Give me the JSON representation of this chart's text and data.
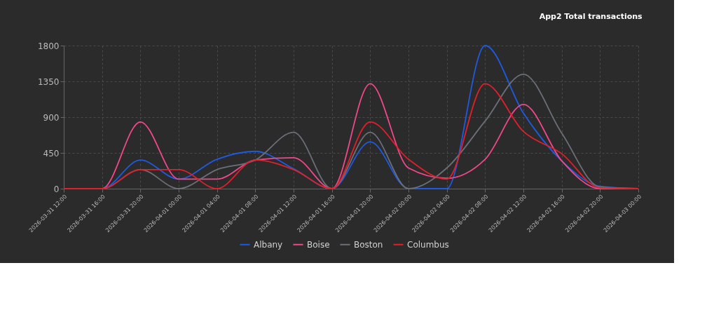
{
  "chart_data": {
    "type": "line",
    "title": "App2 Total transactions",
    "x": [
      "2026-03-31T12:00",
      "2026-03-31T16:00",
      "2026-03-31T20:00",
      "2026-04-01T00:00",
      "2026-04-01T04:00",
      "2026-04-01T08:00",
      "2026-04-01T12:00",
      "2026-04-01T16:00",
      "2026-04-01T20:00",
      "2026-04-02T00:00",
      "2026-04-02T04:00",
      "2026-04-02T08:00",
      "2026-04-02T12:00",
      "2026-04-02T16:00",
      "2026-04-02T20:00",
      "2026-04-03T00:00"
    ],
    "series": [
      {
        "name": "Albany",
        "color": "#1f5be0",
        "values": [
          0,
          0,
          360,
          120,
          370,
          470,
          250,
          0,
          590,
          0,
          0,
          1800,
          950,
          350,
          30,
          0
        ]
      },
      {
        "name": "Boise",
        "color": "#f0488a",
        "values": [
          0,
          0,
          840,
          120,
          120,
          360,
          390,
          0,
          1320,
          260,
          130,
          370,
          1060,
          350,
          0,
          0
        ]
      },
      {
        "name": "Boston",
        "color": "#6b6f78",
        "values": [
          0,
          0,
          240,
          0,
          240,
          360,
          710,
          0,
          710,
          0,
          260,
          850,
          1440,
          700,
          20,
          0
        ]
      },
      {
        "name": "Columbus",
        "color": "#e0202a",
        "values": [
          0,
          0,
          240,
          240,
          0,
          360,
          240,
          0,
          840,
          370,
          120,
          1320,
          720,
          440,
          10,
          0
        ]
      }
    ],
    "xlim": [
      "2026-03-31T12:00",
      "2026-04-03T00:00"
    ],
    "xticks": [
      {
        "value": "2026-03-31T12:00",
        "label": "2026-03-31 12:00"
      },
      {
        "value": "2026-03-31T16:00",
        "label": "2026-03-31 16:00"
      },
      {
        "value": "2026-03-31T20:00",
        "label": "2026-03-31 20:00"
      },
      {
        "value": "2026-04-01T00:00",
        "label": "2026-04-01 00:00"
      },
      {
        "value": "2026-04-01T04:00",
        "label": "2026-04-01 04:00"
      },
      {
        "value": "2026-04-01T08:00",
        "label": "2026-04-01 08:00"
      },
      {
        "value": "2026-04-01T12:00",
        "label": "2026-04-01 12:00"
      },
      {
        "value": "2026-04-01T16:00",
        "label": "2026-04-01 16:00"
      },
      {
        "value": "2026-04-01T20:00",
        "label": "2026-04-01 20:00"
      },
      {
        "value": "2026-04-02T00:00",
        "label": "2026-04-02 00:00"
      },
      {
        "value": "2026-04-02T04:00",
        "label": "2026-04-02 04:00"
      },
      {
        "value": "2026-04-02T08:00",
        "label": "2026-04-02 08:00"
      },
      {
        "value": "2026-04-02T12:00",
        "label": "2026-04-02 12:00"
      },
      {
        "value": "2026-04-02T16:00",
        "label": "2026-04-02 16:00"
      },
      {
        "value": "2026-04-02T20:00",
        "label": "2026-04-02 20:00"
      },
      {
        "value": "2026-04-03T00:00",
        "label": "2026-04-03 00:00"
      }
    ],
    "ylim": [
      0,
      1800
    ],
    "yticks": [
      0,
      450,
      900,
      1350,
      1800
    ],
    "grid": true,
    "legend": "bottom",
    "line_style": "solid"
  }
}
